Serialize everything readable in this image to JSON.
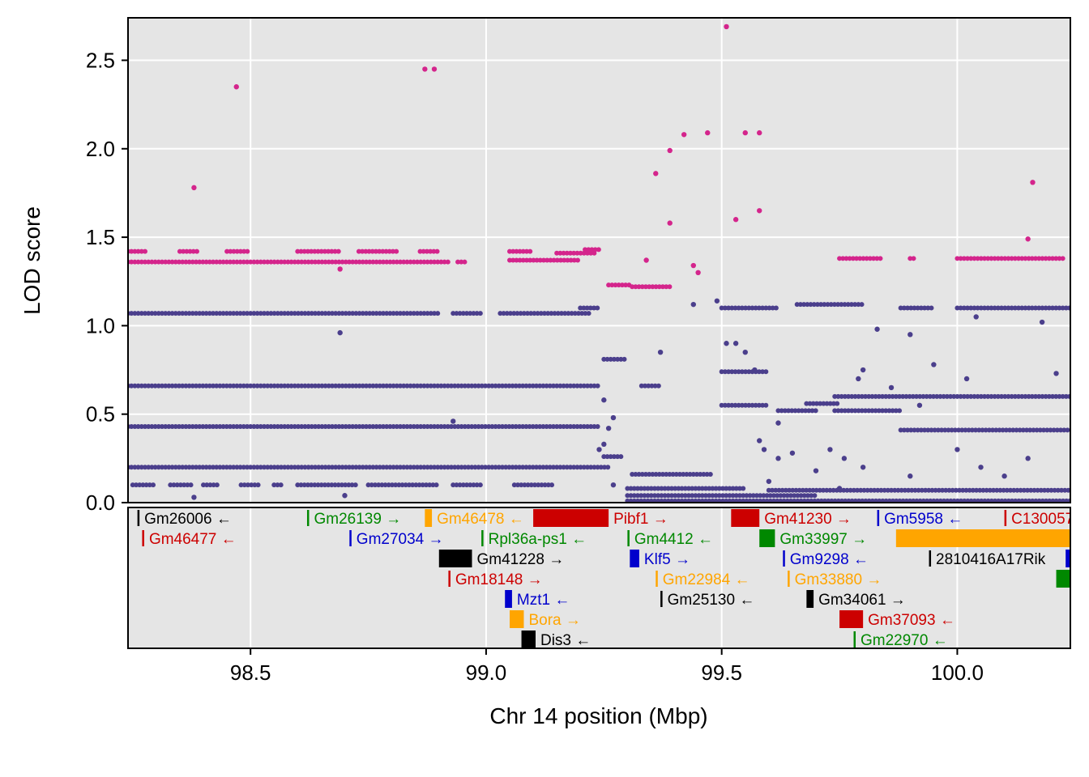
{
  "chart_data": {
    "type": "scatter",
    "xlabel": "Chr 14 position (Mbp)",
    "ylabel": "LOD score",
    "xlim": [
      98.24,
      100.24
    ],
    "ylim": [
      0,
      2.74
    ],
    "xticks": [
      "98.5",
      "99.0",
      "99.5",
      "100.0"
    ],
    "xtick_values": [
      98.5,
      99.0,
      99.5,
      100.0
    ],
    "yticks": [
      "0.0",
      "0.5",
      "1.0",
      "1.5",
      "2.0",
      "2.5"
    ],
    "ytick_values": [
      0,
      0.5,
      1.0,
      1.5,
      2.0,
      2.5
    ],
    "grid": true,
    "colors": {
      "panel_bg": "#e5e5e5",
      "grid": "#ffffff",
      "highlight": "#d4258c",
      "main": "#4b3f8c",
      "black": "#000000",
      "red": "#cc0000",
      "green": "#008800",
      "blue": "#0000cc",
      "orange": "#ffa500"
    },
    "series": [
      {
        "color_key": "highlight",
        "points": [
          [
            98.38,
            1.78
          ],
          [
            98.47,
            2.35
          ],
          [
            98.87,
            2.45
          ],
          [
            98.89,
            2.45
          ],
          [
            98.69,
            1.32
          ],
          [
            99.36,
            1.86
          ],
          [
            99.39,
            1.99
          ],
          [
            99.42,
            2.08
          ],
          [
            99.47,
            2.09
          ],
          [
            99.51,
            2.69
          ],
          [
            99.55,
            2.09
          ],
          [
            99.58,
            2.09
          ],
          [
            99.53,
            1.6
          ],
          [
            99.58,
            1.65
          ],
          [
            99.39,
            1.58
          ],
          [
            99.44,
            1.34
          ],
          [
            99.45,
            1.3
          ],
          [
            99.34,
            1.37
          ],
          [
            100.15,
            1.49
          ],
          [
            100.16,
            1.81
          ]
        ],
        "segments": [
          {
            "x0": 98.24,
            "x1": 98.92,
            "y": 1.36
          },
          {
            "x0": 98.24,
            "x1": 98.28,
            "y": 1.42
          },
          {
            "x0": 98.35,
            "x1": 98.39,
            "y": 1.42
          },
          {
            "x0": 98.45,
            "x1": 98.5,
            "y": 1.42
          },
          {
            "x0": 98.6,
            "x1": 98.69,
            "y": 1.42
          },
          {
            "x0": 98.73,
            "x1": 98.81,
            "y": 1.42
          },
          {
            "x0": 98.86,
            "x1": 98.9,
            "y": 1.42
          },
          {
            "x0": 99.05,
            "x1": 99.1,
            "y": 1.42
          },
          {
            "x0": 98.94,
            "x1": 98.96,
            "y": 1.36
          },
          {
            "x0": 99.05,
            "x1": 99.2,
            "y": 1.37
          },
          {
            "x0": 99.15,
            "x1": 99.23,
            "y": 1.41
          },
          {
            "x0": 99.21,
            "x1": 99.24,
            "y": 1.43
          },
          {
            "x0": 99.26,
            "x1": 99.31,
            "y": 1.23
          },
          {
            "x0": 99.31,
            "x1": 99.39,
            "y": 1.22
          },
          {
            "x0": 99.75,
            "x1": 99.84,
            "y": 1.38
          },
          {
            "x0": 99.9,
            "x1": 99.91,
            "y": 1.38
          },
          {
            "x0": 100.0,
            "x1": 100.23,
            "y": 1.38
          }
        ]
      },
      {
        "color_key": "main",
        "points": [
          [
            98.38,
            0.03
          ],
          [
            98.69,
            0.96
          ],
          [
            98.7,
            0.04
          ],
          [
            98.93,
            0.46
          ],
          [
            99.25,
            0.58
          ],
          [
            99.24,
            0.3
          ],
          [
            99.27,
            0.1
          ],
          [
            99.26,
            0.42
          ],
          [
            99.27,
            0.48
          ],
          [
            99.25,
            0.33
          ],
          [
            99.37,
            0.85
          ],
          [
            99.44,
            1.12
          ],
          [
            99.49,
            1.14
          ],
          [
            99.51,
            0.9
          ],
          [
            99.53,
            0.9
          ],
          [
            99.55,
            0.85
          ],
          [
            99.57,
            0.75
          ],
          [
            99.58,
            0.35
          ],
          [
            99.59,
            0.3
          ],
          [
            99.62,
            0.45
          ],
          [
            99.62,
            0.25
          ],
          [
            99.65,
            0.28
          ],
          [
            99.73,
            0.3
          ],
          [
            99.76,
            0.25
          ],
          [
            99.79,
            0.7
          ],
          [
            99.8,
            0.75
          ],
          [
            99.83,
            0.98
          ],
          [
            99.86,
            0.65
          ],
          [
            99.9,
            0.95
          ],
          [
            99.92,
            0.55
          ],
          [
            99.95,
            0.78
          ],
          [
            100.02,
            0.7
          ],
          [
            100.04,
            1.05
          ],
          [
            100.18,
            1.02
          ],
          [
            100.21,
            0.73
          ],
          [
            99.8,
            0.2
          ],
          [
            99.9,
            0.15
          ],
          [
            100.0,
            0.3
          ],
          [
            100.05,
            0.2
          ],
          [
            100.1,
            0.15
          ],
          [
            100.15,
            0.25
          ],
          [
            99.6,
            0.12
          ],
          [
            99.7,
            0.18
          ],
          [
            99.75,
            0.08
          ]
        ],
        "segments": [
          {
            "x0": 98.24,
            "x1": 98.9,
            "y": 1.07
          },
          {
            "x0": 98.93,
            "x1": 98.99,
            "y": 1.07
          },
          {
            "x0": 99.03,
            "x1": 99.22,
            "y": 1.07
          },
          {
            "x0": 99.2,
            "x1": 99.24,
            "y": 1.1
          },
          {
            "x0": 98.24,
            "x1": 99.24,
            "y": 0.66
          },
          {
            "x0": 98.24,
            "x1": 99.24,
            "y": 0.43
          },
          {
            "x0": 98.24,
            "x1": 99.26,
            "y": 0.2
          },
          {
            "x0": 98.25,
            "x1": 98.3,
            "y": 0.1
          },
          {
            "x0": 98.33,
            "x1": 98.38,
            "y": 0.1
          },
          {
            "x0": 98.4,
            "x1": 98.43,
            "y": 0.1
          },
          {
            "x0": 98.48,
            "x1": 98.52,
            "y": 0.1
          },
          {
            "x0": 98.55,
            "x1": 98.57,
            "y": 0.1
          },
          {
            "x0": 98.6,
            "x1": 98.73,
            "y": 0.1
          },
          {
            "x0": 98.75,
            "x1": 98.9,
            "y": 0.1
          },
          {
            "x0": 98.93,
            "x1": 98.99,
            "y": 0.1
          },
          {
            "x0": 99.06,
            "x1": 99.14,
            "y": 0.1
          },
          {
            "x0": 99.25,
            "x1": 99.3,
            "y": 0.81
          },
          {
            "x0": 99.25,
            "x1": 99.29,
            "y": 0.26
          },
          {
            "x0": 99.33,
            "x1": 99.37,
            "y": 0.66
          },
          {
            "x0": 99.31,
            "x1": 99.48,
            "y": 0.16
          },
          {
            "x0": 99.3,
            "x1": 99.55,
            "y": 0.08
          },
          {
            "x0": 99.3,
            "x1": 99.7,
            "y": 0.04
          },
          {
            "x0": 99.3,
            "x1": 100.24,
            "y": 0.01
          },
          {
            "x0": 99.5,
            "x1": 99.62,
            "y": 1.1
          },
          {
            "x0": 99.5,
            "x1": 99.6,
            "y": 0.74
          },
          {
            "x0": 99.5,
            "x1": 99.6,
            "y": 0.55
          },
          {
            "x0": 99.62,
            "x1": 99.7,
            "y": 0.52
          },
          {
            "x0": 99.68,
            "x1": 99.75,
            "y": 0.56
          },
          {
            "x0": 99.66,
            "x1": 99.8,
            "y": 1.12
          },
          {
            "x0": 99.74,
            "x1": 100.24,
            "y": 0.6
          },
          {
            "x0": 99.74,
            "x1": 99.88,
            "y": 0.52
          },
          {
            "x0": 99.88,
            "x1": 100.24,
            "y": 0.41
          },
          {
            "x0": 99.88,
            "x1": 99.95,
            "y": 1.1
          },
          {
            "x0": 100.0,
            "x1": 100.24,
            "y": 1.1
          },
          {
            "x0": 99.6,
            "x1": 100.24,
            "y": 0.07
          }
        ]
      }
    ],
    "genes": [
      {
        "label": "Gm26006 ←",
        "start": 98.26,
        "end": 98.261,
        "row": 0,
        "color_key": "black"
      },
      {
        "label": "Gm46477 ←",
        "start": 98.27,
        "end": 98.271,
        "row": 1,
        "color_key": "red"
      },
      {
        "label": "Gm26139 →",
        "start": 98.62,
        "end": 98.621,
        "row": 0,
        "color_key": "green"
      },
      {
        "label": "Gm46478 ←",
        "start": 98.87,
        "end": 98.885,
        "row": 0,
        "color_key": "orange"
      },
      {
        "label": "Gm27034 →",
        "start": 98.71,
        "end": 98.711,
        "row": 1,
        "color_key": "blue"
      },
      {
        "label": "Gm41228 →",
        "start": 98.9,
        "end": 98.97,
        "row": 2,
        "color_key": "black"
      },
      {
        "label": "Rpl36a-ps1 ←",
        "start": 98.99,
        "end": 98.991,
        "row": 1,
        "color_key": "green"
      },
      {
        "label": "Gm18148 →",
        "start": 98.92,
        "end": 98.921,
        "row": 3,
        "color_key": "red"
      },
      {
        "label": "Mzt1 ←",
        "start": 99.04,
        "end": 99.055,
        "row": 4,
        "color_key": "blue"
      },
      {
        "label": "Bora →",
        "start": 99.05,
        "end": 99.08,
        "row": 5,
        "color_key": "orange"
      },
      {
        "label": "Dis3 ←",
        "start": 99.075,
        "end": 99.105,
        "row": 6,
        "color_key": "black"
      },
      {
        "label": "Pibf1 →",
        "start": 99.1,
        "end": 99.26,
        "row": 0,
        "color_key": "red"
      },
      {
        "label": "Gm4412 ←",
        "start": 99.3,
        "end": 99.301,
        "row": 1,
        "color_key": "green"
      },
      {
        "label": "Klf5 →",
        "start": 99.305,
        "end": 99.325,
        "row": 2,
        "color_key": "blue"
      },
      {
        "label": "Gm22984 ←",
        "start": 99.36,
        "end": 99.361,
        "row": 3,
        "color_key": "orange"
      },
      {
        "label": "Gm25130 ←",
        "start": 99.37,
        "end": 99.371,
        "row": 4,
        "color_key": "black"
      },
      {
        "label": "Gm41230 →",
        "start": 99.52,
        "end": 99.58,
        "row": 0,
        "color_key": "red"
      },
      {
        "label": "Gm33997 →",
        "start": 99.58,
        "end": 99.613,
        "row": 1,
        "color_key": "green"
      },
      {
        "label": "Gm9298 ←",
        "start": 99.63,
        "end": 99.631,
        "row": 2,
        "color_key": "blue"
      },
      {
        "label": "Gm33880 →",
        "start": 99.64,
        "end": 99.641,
        "row": 3,
        "color_key": "orange"
      },
      {
        "label": "Gm34061 →",
        "start": 99.68,
        "end": 99.695,
        "row": 4,
        "color_key": "black"
      },
      {
        "label": "Gm37093 ←",
        "start": 99.75,
        "end": 99.8,
        "row": 5,
        "color_key": "red"
      },
      {
        "label": "Gm22970 ←",
        "start": 99.78,
        "end": 99.781,
        "row": 6,
        "color_key": "green"
      },
      {
        "label": "Gm5958 ←",
        "start": 99.83,
        "end": 99.831,
        "row": 0,
        "color_key": "blue"
      },
      {
        "label": "",
        "start": 99.87,
        "end": 100.24,
        "row": 1,
        "color_key": "orange"
      },
      {
        "label": "2810416A17Rik",
        "start": 99.94,
        "end": 99.941,
        "row": 2,
        "color_key": "black"
      },
      {
        "label": "C130057",
        "start": 100.1,
        "end": 100.101,
        "row": 0,
        "color_key": "red"
      },
      {
        "label": "",
        "start": 100.21,
        "end": 100.24,
        "row": 3,
        "color_key": "green"
      },
      {
        "label": "",
        "start": 100.23,
        "end": 100.24,
        "row": 2,
        "color_key": "blue"
      }
    ]
  }
}
